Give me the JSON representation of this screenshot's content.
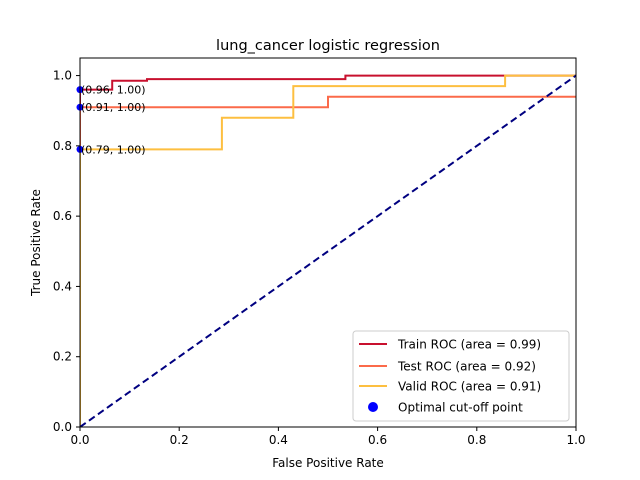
{
  "chart_data": {
    "type": "line",
    "title": "lung_cancer logistic regression",
    "xlabel": "False Positive Rate",
    "ylabel": "True Positive Rate",
    "xlim": [
      0,
      1
    ],
    "ylim": [
      0,
      1.05
    ],
    "xticks": [
      "0.0",
      "0.2",
      "0.4",
      "0.6",
      "0.8",
      "1.0"
    ],
    "yticks": [
      "0.0",
      "0.2",
      "0.4",
      "0.6",
      "0.8",
      "1.0"
    ],
    "grid": false,
    "legend_position": "lower-right",
    "series": [
      {
        "name": "Train ROC (area = 0.99)",
        "color": "#c8102e",
        "x": [
          0,
          0,
          0.065,
          0.065,
          0.135,
          0.135,
          0.535,
          0.535,
          1.0
        ],
        "y": [
          0,
          0.96,
          0.96,
          0.985,
          0.985,
          0.99,
          0.99,
          1.0,
          1.0
        ]
      },
      {
        "name": "Test ROC (area = 0.92)",
        "color": "#fb6a4a",
        "x": [
          0,
          0,
          0.5,
          0.5,
          1.0
        ],
        "y": [
          0,
          0.91,
          0.91,
          0.94,
          0.94
        ]
      },
      {
        "name": "Valid ROC (area = 0.91)",
        "color": "#fdbf40",
        "x": [
          0,
          0,
          0.286,
          0.286,
          0.43,
          0.43,
          0.857,
          0.857,
          1.0
        ],
        "y": [
          0,
          0.79,
          0.79,
          0.88,
          0.88,
          0.97,
          0.97,
          1.0,
          1.0
        ]
      }
    ],
    "diagonal": {
      "color": "#000080",
      "x": [
        0,
        1
      ],
      "y": [
        0,
        1
      ]
    },
    "optimal_points": {
      "name": "Optimal cut-off point",
      "color": "#0000ff",
      "points": [
        {
          "x": 0,
          "y": 0.96,
          "label": "(0.96, 1.00)"
        },
        {
          "x": 0,
          "y": 0.91,
          "label": "(0.91, 1.00)"
        },
        {
          "x": 0,
          "y": 0.79,
          "label": "(0.79, 1.00)"
        }
      ]
    }
  }
}
